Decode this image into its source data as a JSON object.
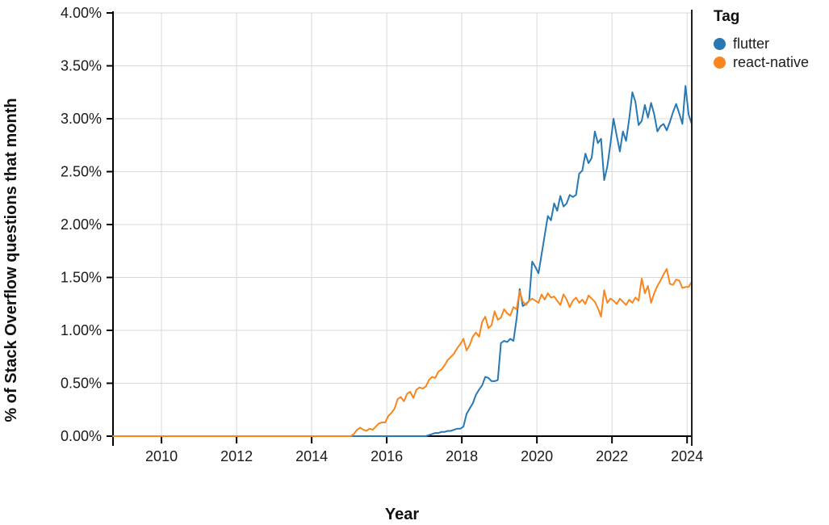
{
  "chart_data": {
    "type": "line",
    "xlabel": "Year",
    "ylabel": "% of Stack Overflow questions that month",
    "legend_title": "Tag",
    "legend_position": "top-right",
    "grid": true,
    "ylim": [
      0,
      4
    ],
    "start": {
      "year": 2008,
      "month": 9
    },
    "frequency": "monthly",
    "y_ticks": [
      {
        "value": 0.0,
        "label": "0.00%"
      },
      {
        "value": 0.5,
        "label": "0.50%"
      },
      {
        "value": 1.0,
        "label": "1.00%"
      },
      {
        "value": 1.5,
        "label": "1.50%"
      },
      {
        "value": 2.0,
        "label": "2.00%"
      },
      {
        "value": 2.5,
        "label": "2.50%"
      },
      {
        "value": 3.0,
        "label": "3.00%"
      },
      {
        "value": 3.5,
        "label": "3.50%"
      },
      {
        "value": 4.0,
        "label": "4.00%"
      }
    ],
    "x_ticks": [
      {
        "value": 2010,
        "label": "2010"
      },
      {
        "value": 2012,
        "label": "2012"
      },
      {
        "value": 2014,
        "label": "2014"
      },
      {
        "value": 2016,
        "label": "2016"
      },
      {
        "value": 2018,
        "label": "2018"
      },
      {
        "value": 2020,
        "label": "2020"
      },
      {
        "value": 2022,
        "label": "2022"
      },
      {
        "value": 2024,
        "label": "2024"
      }
    ],
    "colors": {
      "grid": "#d9d9d9",
      "axis": "#000000",
      "tick_label": "#1a1a1a",
      "end_line": "#1f1f1f"
    },
    "series": [
      {
        "name": "flutter",
        "color": "#2878b4",
        "values": [
          0,
          0,
          0,
          0,
          0,
          0,
          0,
          0,
          0,
          0,
          0,
          0,
          0,
          0,
          0,
          0,
          0,
          0,
          0,
          0,
          0,
          0,
          0,
          0,
          0,
          0,
          0,
          0,
          0,
          0,
          0,
          0,
          0,
          0,
          0,
          0,
          0,
          0,
          0,
          0,
          0,
          0,
          0,
          0,
          0,
          0,
          0,
          0,
          0,
          0,
          0,
          0,
          0,
          0,
          0,
          0,
          0,
          0,
          0,
          0,
          0,
          0,
          0,
          0,
          0,
          0,
          0,
          0,
          0,
          0,
          0,
          0,
          0,
          0,
          0,
          0,
          0,
          0,
          0,
          0,
          0,
          0,
          0,
          0,
          0,
          0,
          0,
          0,
          0,
          0,
          0,
          0,
          0,
          0,
          0,
          0,
          0,
          0,
          0,
          0,
          0,
          0.01,
          0.02,
          0.03,
          0.03,
          0.04,
          0.04,
          0.05,
          0.05,
          0.06,
          0.07,
          0.07,
          0.09,
          0.21,
          0.26,
          0.31,
          0.39,
          0.44,
          0.48,
          0.56,
          0.55,
          0.52,
          0.52,
          0.53,
          0.88,
          0.9,
          0.89,
          0.92,
          0.9,
          1.11,
          1.39,
          1.23,
          1.25,
          1.28,
          1.65,
          1.6,
          1.54,
          1.72,
          1.9,
          2.08,
          2.04,
          2.2,
          2.13,
          2.27,
          2.17,
          2.2,
          2.28,
          2.26,
          2.28,
          2.48,
          2.51,
          2.67,
          2.58,
          2.63,
          2.88,
          2.77,
          2.81,
          2.42,
          2.55,
          2.76,
          3.0,
          2.84,
          2.69,
          2.88,
          2.79,
          3.0,
          3.25,
          3.16,
          2.94,
          2.98,
          3.13,
          3.01,
          3.15,
          3.04,
          2.88,
          2.93,
          2.95,
          2.89,
          2.97,
          3.06,
          3.14,
          3.05,
          2.95,
          3.31,
          3.04,
          2.95
        ]
      },
      {
        "name": "react-native",
        "color": "#f8861e",
        "values": [
          0,
          0,
          0,
          0,
          0,
          0,
          0,
          0,
          0,
          0,
          0,
          0,
          0,
          0,
          0,
          0,
          0,
          0,
          0,
          0,
          0,
          0,
          0,
          0,
          0,
          0,
          0,
          0,
          0,
          0,
          0,
          0,
          0,
          0,
          0,
          0,
          0,
          0,
          0,
          0,
          0,
          0,
          0,
          0,
          0,
          0,
          0,
          0,
          0,
          0,
          0,
          0,
          0,
          0,
          0,
          0,
          0,
          0,
          0,
          0,
          0,
          0,
          0,
          0,
          0,
          0,
          0,
          0,
          0,
          0,
          0,
          0,
          0,
          0,
          0,
          0,
          0,
          0.02,
          0.06,
          0.08,
          0.06,
          0.05,
          0.07,
          0.06,
          0.09,
          0.12,
          0.13,
          0.13,
          0.19,
          0.22,
          0.26,
          0.35,
          0.37,
          0.33,
          0.4,
          0.42,
          0.36,
          0.44,
          0.46,
          0.45,
          0.47,
          0.53,
          0.56,
          0.55,
          0.61,
          0.63,
          0.67,
          0.72,
          0.75,
          0.78,
          0.83,
          0.87,
          0.92,
          0.81,
          0.86,
          0.94,
          0.98,
          0.94,
          1.08,
          1.13,
          1.02,
          1.05,
          1.18,
          1.1,
          1.12,
          1.2,
          1.16,
          1.14,
          1.22,
          1.2,
          1.37,
          1.27,
          1.24,
          1.28,
          1.3,
          1.28,
          1.26,
          1.34,
          1.29,
          1.35,
          1.31,
          1.32,
          1.28,
          1.24,
          1.34,
          1.29,
          1.22,
          1.28,
          1.31,
          1.26,
          1.29,
          1.25,
          1.33,
          1.3,
          1.27,
          1.21,
          1.13,
          1.38,
          1.26,
          1.3,
          1.28,
          1.25,
          1.3,
          1.27,
          1.24,
          1.29,
          1.26,
          1.31,
          1.28,
          1.49,
          1.35,
          1.42,
          1.26,
          1.35,
          1.42,
          1.47,
          1.53,
          1.58,
          1.44,
          1.43,
          1.48,
          1.47,
          1.4,
          1.41,
          1.41,
          1.46
        ]
      }
    ]
  }
}
